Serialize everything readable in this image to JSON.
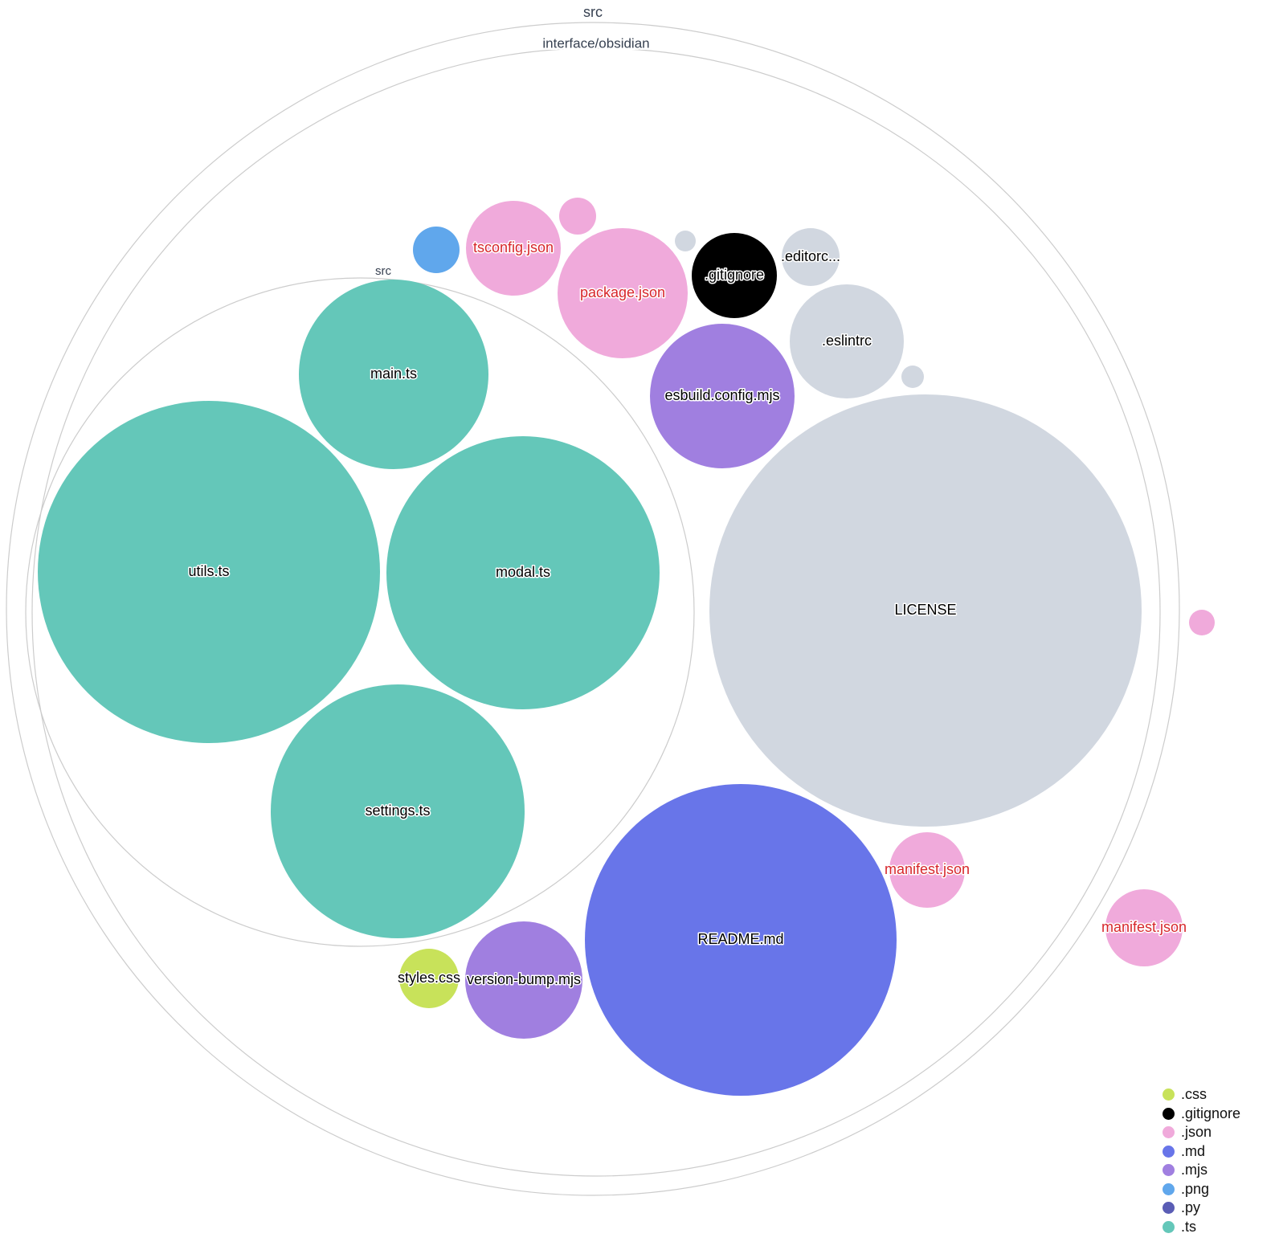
{
  "folders": [
    {
      "label": "src"
    },
    {
      "label": "interface/obsidian"
    },
    {
      "label": "src"
    }
  ],
  "files": [
    {
      "label": "main.ts",
      "ext": ".ts"
    },
    {
      "label": "utils.ts",
      "ext": ".ts"
    },
    {
      "label": "modal.ts",
      "ext": ".ts"
    },
    {
      "label": "settings.ts",
      "ext": ".ts"
    },
    {
      "label": "LICENSE",
      "ext": ""
    },
    {
      "label": "README.md",
      "ext": ".md"
    },
    {
      "label": "esbuild.config.mjs",
      "ext": ".mjs"
    },
    {
      "label": ".eslintrc",
      "ext": ""
    },
    {
      "label": ".gitignore",
      "ext": ".gitignore"
    },
    {
      "label": ".editorc...",
      "ext": ""
    },
    {
      "label": "package.json",
      "ext": ".json"
    },
    {
      "label": "tsconfig.json",
      "ext": ".json"
    },
    {
      "label": "",
      "ext": ".png"
    },
    {
      "label": "",
      "ext": ".json"
    },
    {
      "label": "",
      "ext": ""
    },
    {
      "label": "",
      "ext": ""
    },
    {
      "label": "manifest.json",
      "ext": ".json"
    },
    {
      "label": "manifest.json",
      "ext": ".json"
    },
    {
      "label": "",
      "ext": ".json"
    },
    {
      "label": "styles.css",
      "ext": ".css"
    },
    {
      "label": "version-bump.mjs",
      "ext": ".mjs"
    }
  ],
  "colors": {
    ".css": "#c8e25a",
    ".gitignore": "#000000",
    ".json": "#f0aadb",
    ".md": "#6875e9",
    ".mjs": "#a07fe0",
    ".png": "#60a7ec",
    ".py": "#5a5db5",
    ".ts": "#64c7b9",
    "": "#d1d7e0",
    "json_label": "#d7262b"
  },
  "legend": [
    ".css",
    ".gitignore",
    ".json",
    ".md",
    ".mjs",
    ".png",
    ".py",
    ".ts"
  ]
}
